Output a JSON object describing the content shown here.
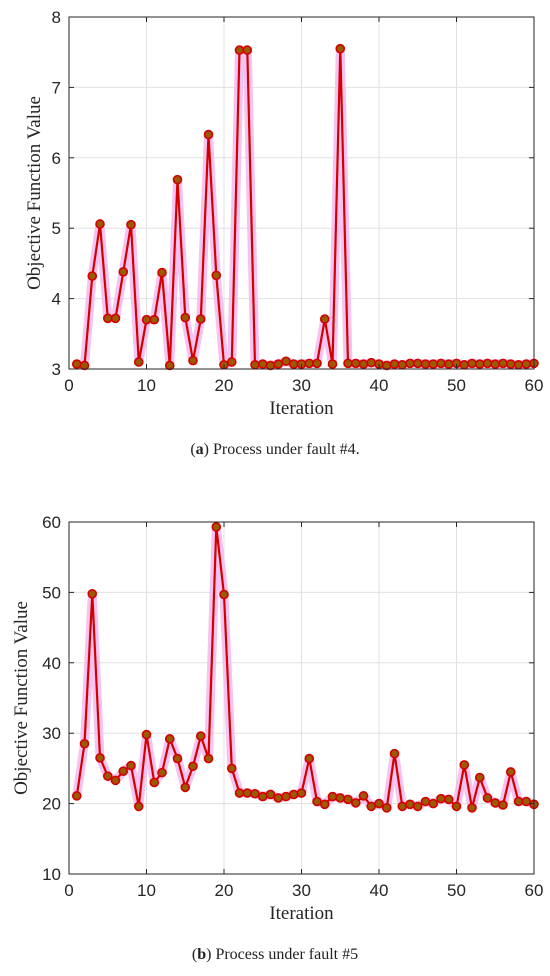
{
  "captions": [
    {
      "letter": "a",
      "text": ") Process under fault #4."
    },
    {
      "letter": "b",
      "text": ") Process under fault #5"
    }
  ],
  "colors": {
    "line": "#d40000",
    "marker_face": "#9a5a00",
    "halo": "#f3b8ee",
    "grid": "#e0e0e0",
    "axis": "#262626"
  },
  "chart_data": [
    {
      "type": "line",
      "xlabel": "Iteration",
      "ylabel": "Objective Function Value",
      "xlim": [
        0,
        60
      ],
      "ylim": [
        3,
        8
      ],
      "xticks": [
        0,
        10,
        20,
        30,
        40,
        50,
        60
      ],
      "yticks": [
        3,
        4,
        5,
        6,
        7,
        8
      ],
      "grid": true,
      "x": [
        1,
        2,
        3,
        4,
        5,
        6,
        7,
        8,
        9,
        10,
        11,
        12,
        13,
        14,
        15,
        16,
        17,
        18,
        19,
        20,
        21,
        22,
        23,
        24,
        25,
        26,
        27,
        28,
        29,
        30,
        31,
        32,
        33,
        34,
        35,
        36,
        37,
        38,
        39,
        40,
        41,
        42,
        43,
        44,
        45,
        46,
        47,
        48,
        49,
        50,
        51,
        52,
        53,
        54,
        55,
        56,
        57,
        58,
        59,
        60
      ],
      "y": [
        3.07,
        3.05,
        4.32,
        5.06,
        3.72,
        3.72,
        4.38,
        5.05,
        3.1,
        3.7,
        3.7,
        4.37,
        3.05,
        5.69,
        3.73,
        3.12,
        3.71,
        6.33,
        4.33,
        3.06,
        3.1,
        7.53,
        7.53,
        3.06,
        3.07,
        3.05,
        3.07,
        3.11,
        3.07,
        3.07,
        3.08,
        3.08,
        3.71,
        3.07,
        7.55,
        3.08,
        3.08,
        3.07,
        3.09,
        3.07,
        3.05,
        3.07,
        3.06,
        3.08,
        3.08,
        3.07,
        3.07,
        3.08,
        3.07,
        3.08,
        3.06,
        3.08,
        3.07,
        3.08,
        3.07,
        3.08,
        3.07,
        3.06,
        3.07,
        3.08
      ]
    },
    {
      "type": "line",
      "xlabel": "Iteration",
      "ylabel": "Objective Function Value",
      "xlim": [
        0,
        60
      ],
      "ylim": [
        10,
        60
      ],
      "xticks": [
        0,
        10,
        20,
        30,
        40,
        50,
        60
      ],
      "yticks": [
        10,
        20,
        30,
        40,
        50,
        60
      ],
      "grid": true,
      "x": [
        1,
        2,
        3,
        4,
        5,
        6,
        7,
        8,
        9,
        10,
        11,
        12,
        13,
        14,
        15,
        16,
        17,
        18,
        19,
        20,
        21,
        22,
        23,
        24,
        25,
        26,
        27,
        28,
        29,
        30,
        31,
        32,
        33,
        34,
        35,
        36,
        37,
        38,
        39,
        40,
        41,
        42,
        43,
        44,
        45,
        46,
        47,
        48,
        49,
        50,
        51,
        52,
        53,
        54,
        55,
        56,
        57,
        58,
        59,
        60
      ],
      "y": [
        21.1,
        28.5,
        49.8,
        26.5,
        23.9,
        23.3,
        24.6,
        25.4,
        19.6,
        29.8,
        23.0,
        24.4,
        29.2,
        26.4,
        22.3,
        25.3,
        29.6,
        26.4,
        59.3,
        49.7,
        25.0,
        21.5,
        21.5,
        21.4,
        21.0,
        21.3,
        20.8,
        21.0,
        21.3,
        21.5,
        26.4,
        20.3,
        19.9,
        21.0,
        20.8,
        20.6,
        20.1,
        21.1,
        19.6,
        20.0,
        19.4,
        27.1,
        19.6,
        19.9,
        19.6,
        20.3,
        20.0,
        20.7,
        20.6,
        19.6,
        25.5,
        19.4,
        23.7,
        20.8,
        20.1,
        19.8,
        24.5,
        20.3,
        20.3,
        19.9
      ]
    }
  ]
}
